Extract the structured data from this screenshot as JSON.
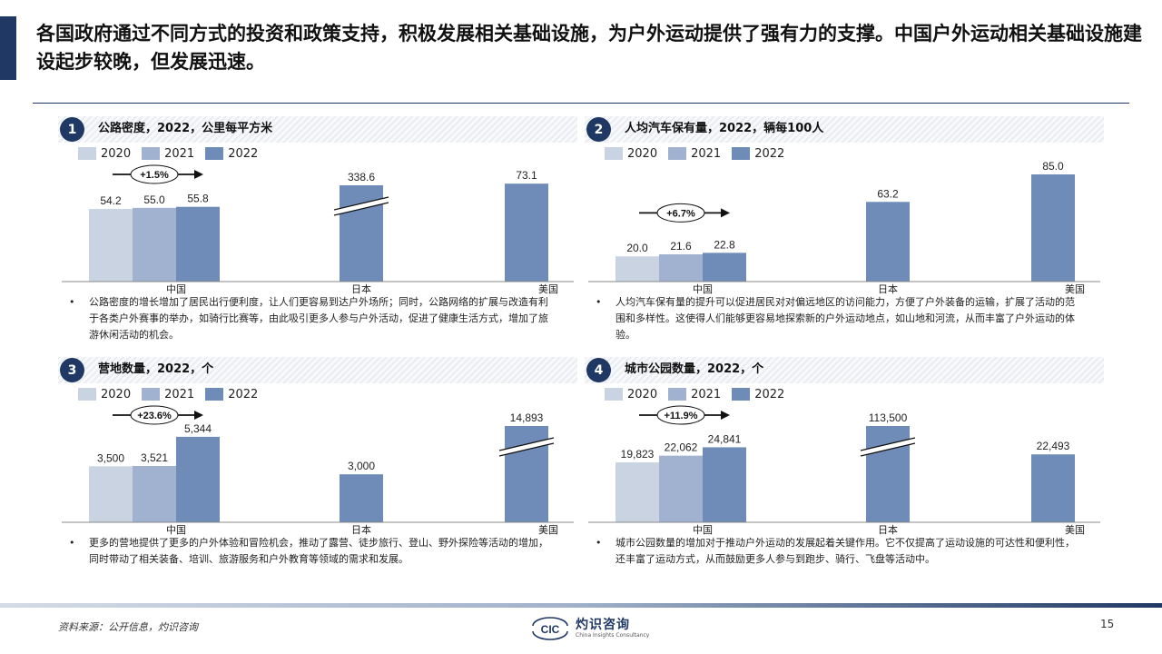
{
  "slide": {
    "title": "各国政府通过不同方式的投资和政策支持，积极发展相关基础设施，为户外运动提供了强有力的支撑。中国户外运动相关基础设施建设起步较晚，但发展迅速。",
    "source": "资料来源：公开信息，灼识咨询",
    "page": "15",
    "logo_cn": "灼识咨询",
    "logo_en": "China Insights Consultancy",
    "logo_mark": "CIC"
  },
  "colors": {
    "y2020": "#c9d3e2",
    "y2021": "#a0b2cf",
    "y2022": "#6f8bb8",
    "brand": "#1f3864"
  },
  "panels": [
    {
      "num": "1",
      "title": "公路密度，2022，公里每平方米",
      "legend": [
        "2020",
        "2021",
        "2022"
      ],
      "bullet": "公路密度的增长增加了居民出行便利度，让人们更容易到达户外场所；同时，公路网络的扩展与改造有利于各类户外赛事的举办，如骑行比赛等，由此吸引更多人参与户外活动，促进了健康生活方式，增加了旅游休闲活动的机会。"
    },
    {
      "num": "2",
      "title": "人均汽车保有量，2022，辆每100人",
      "legend": [
        "2020",
        "2021",
        "2022"
      ],
      "bullet": "人均汽车保有量的提升可以促进居民对对偏远地区的访问能力，方便了户外装备的运输，扩展了活动的范围和多样性。这使得人们能够更容易地探索新的户外运动地点，如山地和河流，从而丰富了户外运动的体验。"
    },
    {
      "num": "3",
      "title": "营地数量，2022，个",
      "legend": [
        "2020",
        "2021",
        "2022"
      ],
      "bullet": "更多的营地提供了更多的户外体验和冒险机会，推动了露营、徒步旅行、登山、野外探险等活动的增加，同时带动了相关装备、培训、旅游服务和户外教育等领域的需求和发展。"
    },
    {
      "num": "4",
      "title": "城市公园数量，2022，个",
      "legend": [
        "2020",
        "2021",
        "2022"
      ],
      "bullet": "城市公园数量的增加对于推动户外运动的发展起着关键作用。它不仅提高了运动设施的可达性和便利性，还丰富了运动方式，从而鼓励更多人参与到跑步、骑行、飞盘等活动中。"
    }
  ],
  "chart_data": [
    {
      "type": "bar",
      "title": "公路密度，2022，公里每平方米",
      "categories": [
        "中国",
        "日本",
        "美国"
      ],
      "china_series": [
        {
          "name": "2020",
          "value": 54.2,
          "label": "54.2"
        },
        {
          "name": "2021",
          "value": 55.0,
          "label": "55.0"
        },
        {
          "name": "2022",
          "value": 55.8,
          "label": "55.8"
        }
      ],
      "others": [
        {
          "category": "日本",
          "year": "2022",
          "value": 338.6,
          "label": "338.6",
          "broken": true
        },
        {
          "category": "美国",
          "year": "2022",
          "value": 73.1,
          "label": "73.1",
          "broken": false
        }
      ],
      "cagr": "+1.5%",
      "ylim": [
        0,
        80
      ]
    },
    {
      "type": "bar",
      "title": "人均汽车保有量，2022，辆每100人",
      "categories": [
        "中国",
        "日本",
        "美国"
      ],
      "china_series": [
        {
          "name": "2020",
          "value": 20.0,
          "label": "20.0"
        },
        {
          "name": "2021",
          "value": 21.6,
          "label": "21.6"
        },
        {
          "name": "2022",
          "value": 22.8,
          "label": "22.8"
        }
      ],
      "others": [
        {
          "category": "日本",
          "year": "2022",
          "value": 63.2,
          "label": "63.2",
          "broken": false
        },
        {
          "category": "美国",
          "year": "2022",
          "value": 85.0,
          "label": "85.0",
          "broken": false
        }
      ],
      "cagr": "+6.7%",
      "ylim": [
        0,
        85
      ]
    },
    {
      "type": "bar",
      "title": "营地数量，2022，个",
      "categories": [
        "中国",
        "日本",
        "美国"
      ],
      "china_series": [
        {
          "name": "2020",
          "value": 3500,
          "label": "3,500"
        },
        {
          "name": "2021",
          "value": 3521,
          "label": "3,521"
        },
        {
          "name": "2022",
          "value": 5344,
          "label": "5,344"
        }
      ],
      "others": [
        {
          "category": "日本",
          "year": "2022",
          "value": 3000,
          "label": "3,000",
          "broken": false
        },
        {
          "category": "美国",
          "year": "2022",
          "value": 14893,
          "label": "14,893",
          "broken": true
        }
      ],
      "cagr": "+23.6%",
      "ylim": [
        0,
        6700
      ]
    },
    {
      "type": "bar",
      "title": "城市公园数量，2022，个",
      "categories": [
        "中国",
        "日本",
        "美国"
      ],
      "china_series": [
        {
          "name": "2020",
          "value": 19823,
          "label": "19,823"
        },
        {
          "name": "2021",
          "value": 22062,
          "label": "22,062"
        },
        {
          "name": "2022",
          "value": 24841,
          "label": "24,841"
        }
      ],
      "others": [
        {
          "category": "日本",
          "year": "2022",
          "value": 113500,
          "label": "113,500",
          "broken": true
        },
        {
          "category": "美国",
          "year": "2022",
          "value": 22493,
          "label": "22,493",
          "broken": false
        }
      ],
      "cagr": "+11.9%",
      "ylim": [
        0,
        35500
      ]
    }
  ]
}
